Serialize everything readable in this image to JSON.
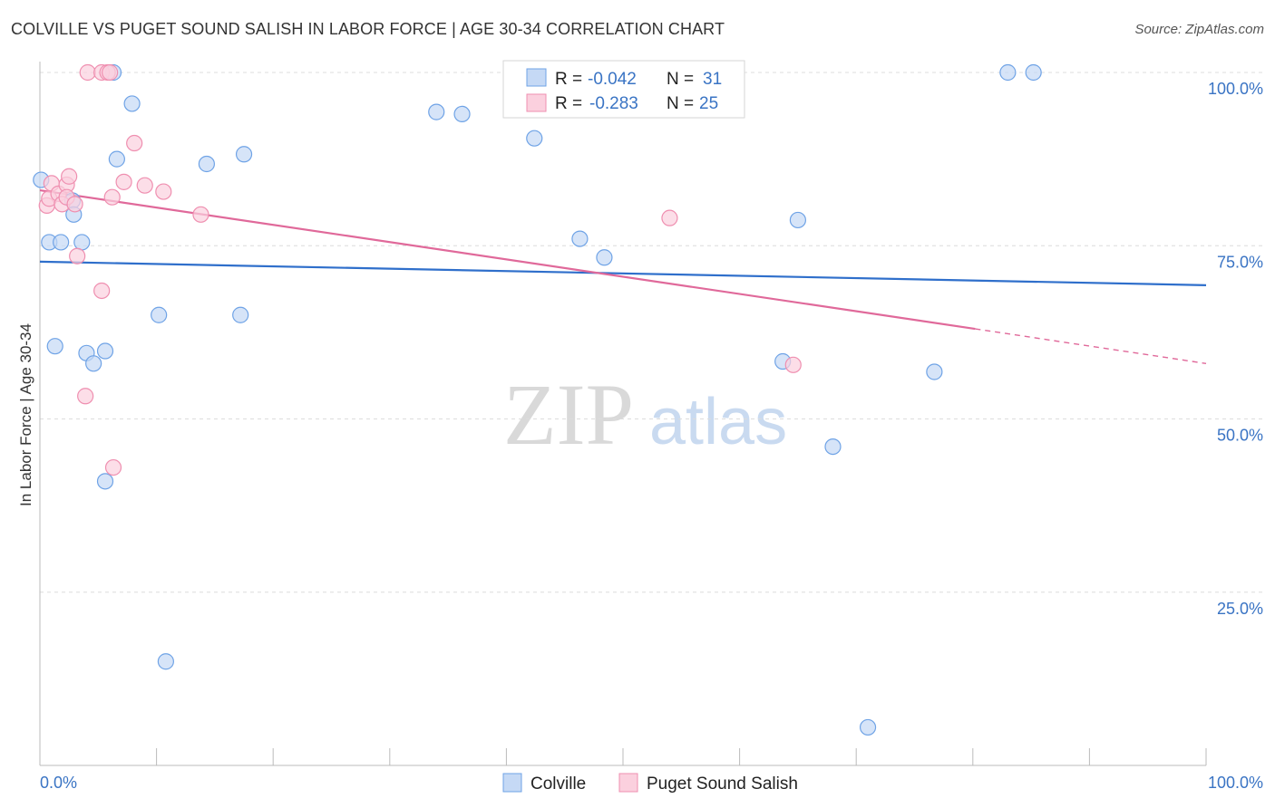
{
  "title": "COLVILLE VS PUGET SOUND SALISH IN LABOR FORCE | AGE 30-34 CORRELATION CHART",
  "source": "Source: ZipAtlas.com",
  "watermark": {
    "zip": "ZIP",
    "atlas": "atlas"
  },
  "chart_data": {
    "type": "scatter",
    "xlabel": "",
    "ylabel": "In Labor Force | Age 30-34",
    "xlim": [
      0,
      100
    ],
    "ylim": [
      0,
      100
    ],
    "x_tick_labels": [
      "0.0%",
      "100.0%"
    ],
    "y_ticks": [
      25,
      50,
      75,
      100
    ],
    "y_tick_labels": [
      "25.0%",
      "50.0%",
      "75.0%",
      "100.0%"
    ],
    "grid": true,
    "legend_placement": "top-center",
    "stats": [
      {
        "r_label": "R =",
        "r_value": "-0.042",
        "n_label": "N =",
        "n_value": "31"
      },
      {
        "r_label": "R =",
        "r_value": "-0.283",
        "n_label": "N =",
        "n_value": "25"
      }
    ],
    "series": [
      {
        "name": "Colville",
        "color": "#6fa3e6",
        "fill": "#c5d9f5",
        "trend_color": "#2f6fcb",
        "trend": [
          [
            0,
            72.7
          ],
          [
            100,
            69.3
          ]
        ],
        "points": [
          [
            0.1,
            84.5
          ],
          [
            0.8,
            75.5
          ],
          [
            1.8,
            75.5
          ],
          [
            1.3,
            60.5
          ],
          [
            2.8,
            81.5
          ],
          [
            2.9,
            79.5
          ],
          [
            3.6,
            75.5
          ],
          [
            4.0,
            59.5
          ],
          [
            4.6,
            58.0
          ],
          [
            5.6,
            59.8
          ],
          [
            5.6,
            41.0
          ],
          [
            6.3,
            100
          ],
          [
            6.6,
            87.5
          ],
          [
            7.9,
            95.5
          ],
          [
            10.2,
            65.0
          ],
          [
            10.8,
            15.0
          ],
          [
            14.3,
            86.8
          ],
          [
            17.2,
            65.0
          ],
          [
            17.5,
            88.2
          ],
          [
            34.0,
            94.3
          ],
          [
            36.2,
            94.0
          ],
          [
            42.4,
            90.5
          ],
          [
            46.3,
            76.0
          ],
          [
            48.4,
            73.3
          ],
          [
            63.7,
            58.3
          ],
          [
            65.0,
            78.7
          ],
          [
            68.0,
            46.0
          ],
          [
            71.0,
            5.5
          ],
          [
            76.7,
            56.8
          ],
          [
            83.0,
            100
          ],
          [
            85.2,
            100
          ]
        ]
      },
      {
        "name": "Puget Sound Salish",
        "color": "#ef8fb0",
        "fill": "#fbd0de",
        "trend_color": "#e0699a",
        "trend": [
          [
            0,
            83.0
          ],
          [
            80.2,
            63.0
          ]
        ],
        "trend_dashed": [
          [
            80.2,
            63.0
          ],
          [
            100,
            58.0
          ]
        ],
        "points": [
          [
            0.6,
            80.8
          ],
          [
            0.8,
            81.8
          ],
          [
            1.0,
            84.0
          ],
          [
            1.6,
            82.5
          ],
          [
            1.9,
            81.0
          ],
          [
            2.3,
            83.8
          ],
          [
            2.3,
            82.0
          ],
          [
            2.5,
            85.0
          ],
          [
            3.0,
            81.0
          ],
          [
            3.2,
            73.5
          ],
          [
            3.9,
            53.3
          ],
          [
            4.1,
            100
          ],
          [
            5.3,
            68.5
          ],
          [
            5.3,
            100
          ],
          [
            5.8,
            100
          ],
          [
            6.0,
            100
          ],
          [
            6.2,
            82.0
          ],
          [
            6.3,
            43.0
          ],
          [
            7.2,
            84.2
          ],
          [
            8.1,
            89.8
          ],
          [
            9.0,
            83.7
          ],
          [
            10.6,
            82.8
          ],
          [
            13.8,
            79.5
          ],
          [
            54.0,
            79.0
          ],
          [
            64.6,
            57.8
          ]
        ]
      }
    ]
  }
}
